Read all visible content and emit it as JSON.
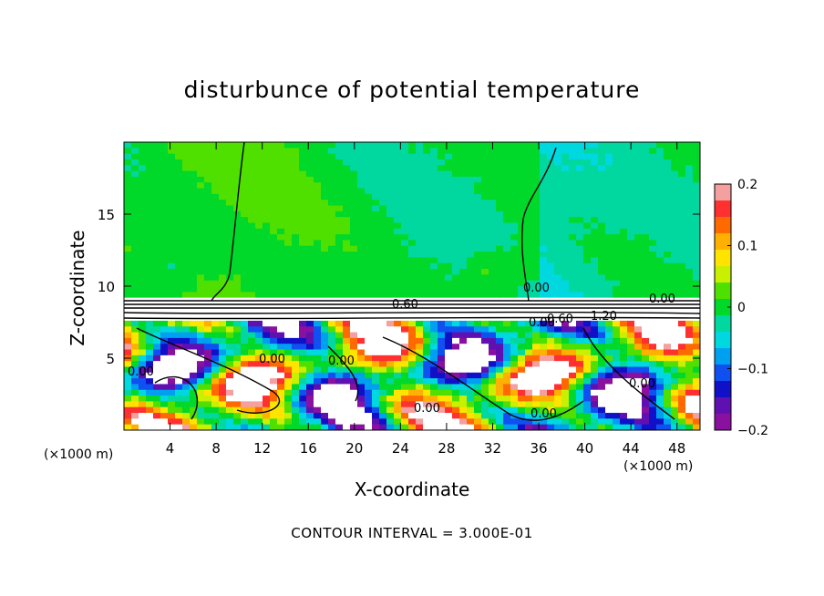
{
  "chart_data": {
    "type": "heatmap",
    "title": "disturbunce of potential temperature",
    "xlabel": "X-coordinate",
    "ylabel": "Z-coordinate",
    "x_unit_note": "(×1000 m)",
    "xlim": [
      0,
      50
    ],
    "ylim": [
      0,
      20
    ],
    "xticks": [
      4,
      8,
      12,
      16,
      20,
      24,
      28,
      32,
      36,
      40,
      44,
      48
    ],
    "yticks": [
      5,
      10,
      15
    ],
    "colorbar": {
      "range": [
        -0.2,
        0.2
      ],
      "ticks": [
        "0.2",
        "0.1",
        "0",
        "−0.1",
        "−0.2"
      ],
      "colors": [
        "#f4a0a0",
        "#ff3030",
        "#ff6a00",
        "#ffb000",
        "#ffe400",
        "#c8f000",
        "#50e000",
        "#00d82a",
        "#00d8a0",
        "#00d8e0",
        "#00a0f0",
        "#1050f0",
        "#1010c8",
        "#6010b0",
        "#8a10a0"
      ]
    },
    "contour_labels": [
      "0.60",
      "0.00",
      "0.00",
      "0.00",
      "0.60",
      "1.20",
      "0.00",
      "0.00",
      "0.00",
      "0.00",
      "0.00",
      "0.00"
    ],
    "contour_interval_text": "CONTOUR INTERVAL = 3.000E-01"
  }
}
